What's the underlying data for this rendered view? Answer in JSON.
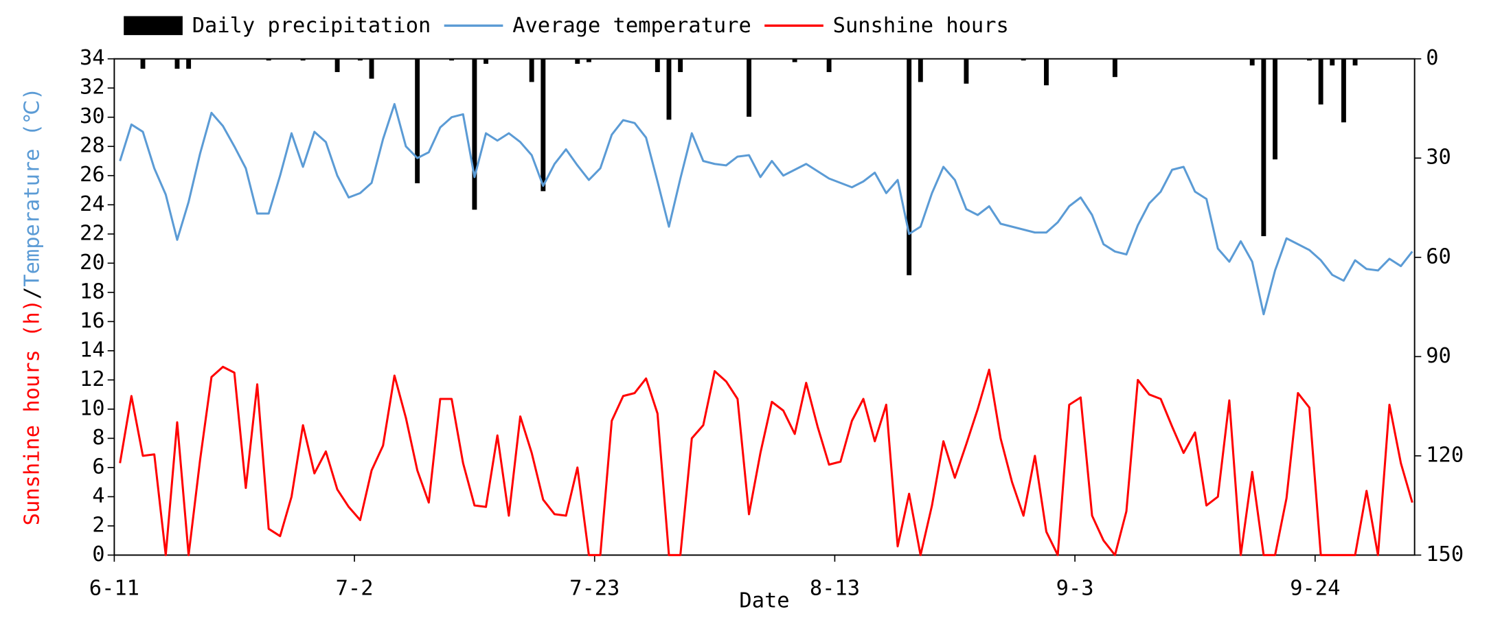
{
  "chart_data": {
    "type": "line",
    "xlabel": "Date",
    "ylabel_parts": [
      {
        "text": "Sunshine hours (h)",
        "color": "#ff0000"
      },
      {
        "text": "/",
        "color": "#000000"
      },
      {
        "text": "Temperature (℃)",
        "color": "#5b9bd5"
      }
    ],
    "x": [
      0,
      1,
      2,
      3,
      4,
      5,
      6,
      7,
      8,
      9,
      10,
      11,
      12,
      13,
      14,
      15,
      16,
      17,
      18,
      19,
      20,
      21,
      22,
      23,
      24,
      25,
      26,
      27,
      28,
      29,
      30,
      31,
      32,
      33,
      34,
      35,
      36,
      37,
      38,
      39,
      40,
      41,
      42,
      43,
      44,
      45,
      46,
      47,
      48,
      49,
      50,
      51,
      52,
      53,
      54,
      55,
      56,
      57,
      58,
      59,
      60,
      61,
      62,
      63,
      64,
      65,
      66,
      67,
      68,
      69,
      70,
      71,
      72,
      73,
      74,
      75,
      76,
      77,
      78,
      79,
      80,
      81,
      82,
      83,
      84,
      85,
      86,
      87,
      88,
      89,
      90,
      91,
      92,
      93,
      94,
      95,
      96,
      97,
      98,
      99,
      100,
      101,
      102,
      103,
      104,
      105,
      106,
      107,
      108,
      109,
      110,
      111,
      112,
      113
    ],
    "xlim": [
      -0.5,
      113.2
    ],
    "xticks": [
      {
        "value": -0.5,
        "label": "6-11"
      },
      {
        "value": 20.5,
        "label": "7-2"
      },
      {
        "value": 41.5,
        "label": "7-23"
      },
      {
        "value": 62.5,
        "label": "8-13"
      },
      {
        "value": 83.5,
        "label": "9-3"
      },
      {
        "value": 104.5,
        "label": "9-24"
      }
    ],
    "ylim": [
      0,
      34
    ],
    "yticks": [
      0,
      2,
      4,
      6,
      8,
      10,
      12,
      14,
      16,
      18,
      20,
      22,
      24,
      26,
      28,
      30,
      32,
      34
    ],
    "y2lim": [
      150,
      0
    ],
    "y2ticks": [
      0,
      30,
      60,
      90,
      120,
      150
    ],
    "series": [
      {
        "name": "Daily precipitation",
        "type": "bar",
        "axis": "y2",
        "color": "#000000",
        "x": [
          2,
          5,
          6,
          13,
          16,
          19,
          21,
          22,
          26,
          29,
          31,
          32,
          36,
          37,
          40,
          41,
          47,
          48,
          49,
          55,
          59,
          62,
          69,
          70,
          74,
          79,
          81,
          87,
          99,
          100,
          101,
          104,
          105,
          106,
          107,
          108
        ],
        "values": [
          3,
          3,
          3,
          0.5,
          0.5,
          4,
          0.5,
          6,
          37.6,
          0.5,
          45.6,
          1.5,
          7,
          40,
          1.5,
          1,
          4,
          18.4,
          4,
          17.5,
          1,
          4,
          65.4,
          7,
          7.5,
          0.5,
          8,
          5.5,
          2,
          53.6,
          30.4,
          0.5,
          13.8,
          2,
          19.2,
          2
        ]
      },
      {
        "name": "Average temperature",
        "type": "line",
        "color": "#5b9bd5",
        "values": [
          27.0,
          29.5,
          29.0,
          26.5,
          24.7,
          21.6,
          24.2,
          27.5,
          30.3,
          29.4,
          28.0,
          26.5,
          23.4,
          23.4,
          26.0,
          28.9,
          26.6,
          29.0,
          28.3,
          26.0,
          24.5,
          24.8,
          25.5,
          28.5,
          30.9,
          28.0,
          27.2,
          27.6,
          29.3,
          30.0,
          30.2,
          25.9,
          28.9,
          28.4,
          28.9,
          28.3,
          27.4,
          25.3,
          26.8,
          27.8,
          26.7,
          25.7,
          26.5,
          28.8,
          29.8,
          29.6,
          28.6,
          25.6,
          22.5,
          25.8,
          28.9,
          27.0,
          26.8,
          26.7,
          27.3,
          27.4,
          25.9,
          27.0,
          26.0,
          26.4,
          26.8,
          26.3,
          25.8,
          25.5,
          25.2,
          25.6,
          26.2,
          24.8,
          25.7,
          22.0,
          22.5,
          24.8,
          26.6,
          25.7,
          23.7,
          23.3,
          23.9,
          22.7,
          22.5,
          22.3,
          22.1,
          22.1,
          22.8,
          23.9,
          24.5,
          23.3,
          21.3,
          20.8,
          20.6,
          22.6,
          24.1,
          24.9,
          26.4,
          26.6,
          24.9,
          24.4,
          21.0,
          20.1,
          21.5,
          20.1,
          16.5,
          19.5,
          21.7,
          21.3,
          20.9,
          20.2,
          19.2,
          18.8,
          20.2,
          19.6,
          19.5,
          20.3,
          19.8,
          20.8
        ]
      },
      {
        "name": "Sunshine hours",
        "type": "line",
        "color": "#ff0000",
        "values": [
          6.3,
          10.9,
          6.8,
          6.9,
          0,
          9.1,
          0,
          6.5,
          12.2,
          12.9,
          12.5,
          4.6,
          11.7,
          1.8,
          1.3,
          4.0,
          8.9,
          5.6,
          7.1,
          4.5,
          3.3,
          2.4,
          5.8,
          7.5,
          12.3,
          9.4,
          5.8,
          3.6,
          10.7,
          10.7,
          6.3,
          3.4,
          3.3,
          8.2,
          2.7,
          9.5,
          7.0,
          3.8,
          2.8,
          2.7,
          6.0,
          0,
          0,
          9.2,
          10.9,
          11.1,
          12.1,
          9.7,
          0,
          0,
          8.0,
          8.9,
          12.6,
          11.9,
          10.7,
          2.8,
          7.0,
          10.5,
          9.9,
          8.3,
          11.8,
          8.8,
          6.2,
          6.4,
          9.2,
          10.7,
          7.8,
          10.3,
          0.6,
          4.2,
          0,
          3.4,
          7.8,
          5.3,
          7.6,
          10.0,
          12.7,
          8.0,
          5.0,
          2.7,
          6.8,
          1.6,
          0,
          10.3,
          10.8,
          2.7,
          1.0,
          0,
          3.0,
          12.0,
          11.0,
          10.7,
          8.8,
          7.0,
          8.4,
          3.4,
          4.0,
          10.6,
          0,
          5.7,
          0,
          0,
          3.9,
          11.1,
          10.1,
          0,
          0,
          0,
          0,
          4.4,
          0,
          10.3,
          6.3,
          3.6
        ]
      }
    ]
  }
}
